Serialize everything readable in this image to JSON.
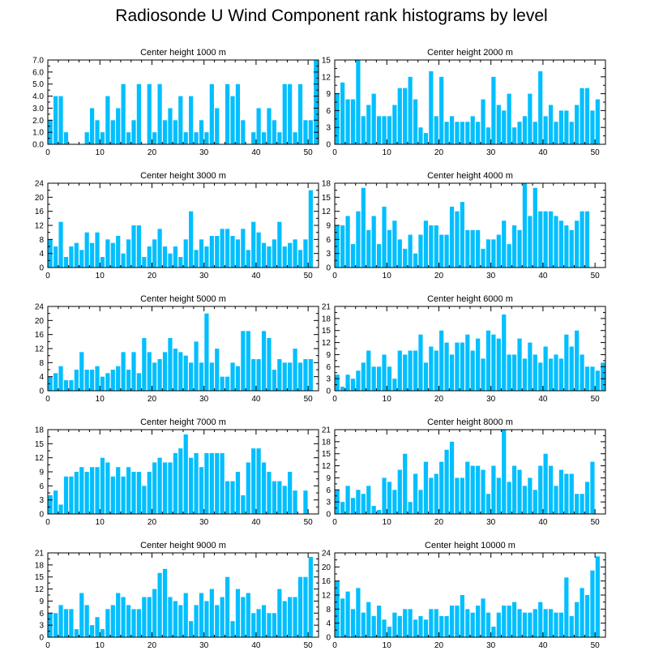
{
  "title": "Radiosonde U Wind Component rank histograms by level",
  "bar_color": "#00bfff",
  "chart_data": [
    {
      "type": "bar",
      "title": "Center height 1000 m",
      "ylim": [
        0,
        7
      ],
      "yticks": [
        0,
        1,
        2,
        3,
        4,
        5,
        6,
        7
      ],
      "ytick_labels": [
        "0.0",
        "1.0",
        "2.0",
        "3.0",
        "4.0",
        "5.0",
        "6.0",
        "7.0"
      ],
      "xticks": [
        0,
        10,
        20,
        30,
        40,
        50
      ],
      "values": [
        2,
        4,
        4,
        1,
        0,
        0,
        0,
        1,
        3,
        2,
        1,
        4,
        2,
        3,
        5,
        1,
        2,
        5,
        0,
        5,
        1,
        5,
        2,
        3,
        2,
        4,
        1,
        4,
        1,
        2,
        1,
        5,
        3,
        0,
        5,
        4,
        5,
        2,
        0,
        1,
        3,
        1,
        3,
        2,
        1,
        5,
        5,
        1,
        5,
        2,
        2,
        7
      ]
    },
    {
      "type": "bar",
      "title": "Center height 2000 m",
      "ylim": [
        0,
        15
      ],
      "yticks": [
        0,
        3,
        6,
        9,
        12,
        15
      ],
      "ytick_labels": [
        "0",
        "3",
        "6",
        "9",
        "12",
        "15"
      ],
      "xticks": [
        0,
        10,
        20,
        30,
        40,
        50
      ],
      "values": [
        9,
        11,
        8,
        8,
        15,
        5,
        7,
        9,
        5,
        5,
        5,
        7,
        10,
        10,
        12,
        8,
        3,
        2,
        13,
        5,
        12,
        4,
        5,
        4,
        4,
        4,
        5,
        4,
        8,
        3,
        12,
        7,
        6,
        9,
        3,
        4,
        5,
        9,
        4,
        13,
        5,
        7,
        4,
        6,
        6,
        4,
        7,
        10,
        10,
        6,
        8,
        0
      ]
    },
    {
      "type": "bar",
      "title": "Center height 3000 m",
      "ylim": [
        0,
        24
      ],
      "yticks": [
        0,
        4,
        8,
        12,
        16,
        20,
        24
      ],
      "ytick_labels": [
        "0",
        "4",
        "8",
        "12",
        "16",
        "20",
        "24"
      ],
      "xticks": [
        0,
        10,
        20,
        30,
        40,
        50
      ],
      "values": [
        8,
        6,
        13,
        3,
        6,
        7,
        5,
        10,
        7,
        10,
        3,
        8,
        7,
        9,
        4,
        8,
        12,
        12,
        3,
        6,
        8,
        11,
        6,
        4,
        6,
        3,
        8,
        16,
        5,
        8,
        6,
        9,
        9,
        11,
        11,
        9,
        8,
        11,
        5,
        13,
        10,
        7,
        6,
        8,
        13,
        6,
        7,
        8,
        5,
        8,
        22,
        0
      ]
    },
    {
      "type": "bar",
      "title": "Center height 4000 m",
      "ylim": [
        0,
        18
      ],
      "yticks": [
        0,
        3,
        6,
        9,
        12,
        15,
        18
      ],
      "ytick_labels": [
        "0",
        "3",
        "6",
        "9",
        "12",
        "15",
        "18"
      ],
      "xticks": [
        0,
        10,
        20,
        30,
        40,
        50
      ],
      "values": [
        9,
        9,
        11,
        5,
        12,
        17,
        8,
        11,
        5,
        13,
        8,
        10,
        6,
        4,
        7,
        3,
        7,
        10,
        9,
        9,
        7,
        7,
        13,
        12,
        14,
        8,
        8,
        8,
        4,
        6,
        6,
        7,
        10,
        5,
        9,
        8,
        18,
        11,
        17,
        12,
        12,
        12,
        11,
        10,
        9,
        8,
        10,
        12,
        12,
        0,
        0,
        0
      ]
    },
    {
      "type": "bar",
      "title": "Center height 5000 m",
      "ylim": [
        0,
        24
      ],
      "yticks": [
        0,
        4,
        8,
        12,
        16,
        20,
        24
      ],
      "ytick_labels": [
        "0",
        "4",
        "8",
        "12",
        "16",
        "20",
        "24"
      ],
      "xticks": [
        0,
        10,
        20,
        30,
        40,
        50
      ],
      "values": [
        4,
        5,
        7,
        3,
        3,
        6,
        11,
        6,
        6,
        7,
        4,
        5,
        6,
        7,
        11,
        6,
        11,
        5,
        15,
        11,
        8,
        9,
        11,
        15,
        12,
        11,
        10,
        8,
        14,
        8,
        22,
        8,
        12,
        4,
        4,
        8,
        7,
        17,
        17,
        9,
        9,
        17,
        15,
        6,
        9,
        8,
        8,
        12,
        8,
        9,
        9,
        0
      ]
    },
    {
      "type": "bar",
      "title": "Center height 6000 m",
      "ylim": [
        0,
        21
      ],
      "yticks": [
        0,
        3,
        6,
        9,
        12,
        15,
        18,
        21
      ],
      "ytick_labels": [
        "0",
        "3",
        "6",
        "9",
        "12",
        "15",
        "18",
        "21"
      ],
      "xticks": [
        0,
        10,
        20,
        30,
        40,
        50
      ],
      "values": [
        4,
        1,
        4,
        3,
        5,
        7,
        10,
        6,
        6,
        9,
        6,
        3,
        10,
        9,
        10,
        10,
        14,
        7,
        11,
        10,
        15,
        12,
        9,
        12,
        12,
        14,
        10,
        13,
        8,
        15,
        14,
        13,
        19,
        9,
        9,
        13,
        8,
        12,
        9,
        7,
        11,
        8,
        9,
        8,
        14,
        11,
        15,
        9,
        6,
        6,
        5,
        7
      ]
    },
    {
      "type": "bar",
      "title": "Center height 7000 m",
      "ylim": [
        0,
        18
      ],
      "yticks": [
        0,
        3,
        6,
        9,
        12,
        15,
        18
      ],
      "ytick_labels": [
        "0",
        "3",
        "6",
        "9",
        "12",
        "15",
        "18"
      ],
      "xticks": [
        0,
        10,
        20,
        30,
        40,
        50
      ],
      "values": [
        4,
        5,
        2,
        8,
        8,
        9,
        10,
        9,
        10,
        10,
        12,
        11,
        8,
        10,
        8,
        10,
        9,
        9,
        6,
        9,
        11,
        12,
        11,
        11,
        13,
        14,
        17,
        12,
        13,
        10,
        13,
        13,
        13,
        13,
        7,
        7,
        9,
        4,
        11,
        14,
        14,
        11,
        9,
        7,
        7,
        6,
        9,
        5,
        0,
        5,
        0,
        0
      ]
    },
    {
      "type": "bar",
      "title": "Center height 8000 m",
      "ylim": [
        0,
        21
      ],
      "yticks": [
        0,
        3,
        6,
        9,
        12,
        15,
        18,
        21
      ],
      "ytick_labels": [
        "0",
        "3",
        "6",
        "9",
        "12",
        "15",
        "18",
        "21"
      ],
      "xticks": [
        0,
        10,
        20,
        30,
        40,
        50
      ],
      "values": [
        6,
        3,
        7,
        4,
        6,
        5,
        7,
        2,
        1,
        9,
        8,
        6,
        11,
        15,
        3,
        10,
        6,
        13,
        9,
        10,
        13,
        16,
        18,
        9,
        9,
        13,
        12,
        12,
        11,
        5,
        12,
        9,
        21,
        8,
        12,
        11,
        7,
        9,
        6,
        12,
        15,
        12,
        7,
        11,
        10,
        10,
        5,
        5,
        8,
        13,
        0,
        0
      ]
    },
    {
      "type": "bar",
      "title": "Center height 9000 m",
      "ylim": [
        0,
        21
      ],
      "yticks": [
        0,
        3,
        6,
        9,
        12,
        15,
        18,
        21
      ],
      "ytick_labels": [
        "0",
        "3",
        "6",
        "9",
        "12",
        "15",
        "18",
        "21"
      ],
      "xticks": [
        0,
        10,
        20,
        30,
        40,
        50
      ],
      "values": [
        6,
        6,
        8,
        7,
        7,
        2,
        11,
        8,
        3,
        5,
        2,
        7,
        8,
        11,
        10,
        8,
        7,
        7,
        10,
        10,
        12,
        16,
        17,
        10,
        9,
        8,
        11,
        4,
        8,
        11,
        9,
        12,
        8,
        10,
        15,
        4,
        12,
        10,
        11,
        6,
        7,
        8,
        6,
        6,
        12,
        9,
        10,
        10,
        15,
        15,
        20,
        0
      ]
    },
    {
      "type": "bar",
      "title": "Center height 10000 m",
      "ylim": [
        0,
        24
      ],
      "yticks": [
        0,
        4,
        8,
        12,
        16,
        20,
        24
      ],
      "ytick_labels": [
        "0",
        "4",
        "8",
        "12",
        "16",
        "20",
        "24"
      ],
      "xticks": [
        0,
        10,
        20,
        30,
        40,
        50
      ],
      "values": [
        16,
        11,
        13,
        8,
        14,
        7,
        10,
        6,
        9,
        5,
        3,
        7,
        6,
        8,
        8,
        5,
        6,
        5,
        8,
        8,
        6,
        6,
        9,
        9,
        12,
        8,
        7,
        9,
        11,
        7,
        3,
        7,
        9,
        9,
        10,
        8,
        7,
        7,
        8,
        10,
        8,
        8,
        7,
        7,
        17,
        6,
        10,
        14,
        12,
        19,
        23,
        0
      ]
    }
  ]
}
